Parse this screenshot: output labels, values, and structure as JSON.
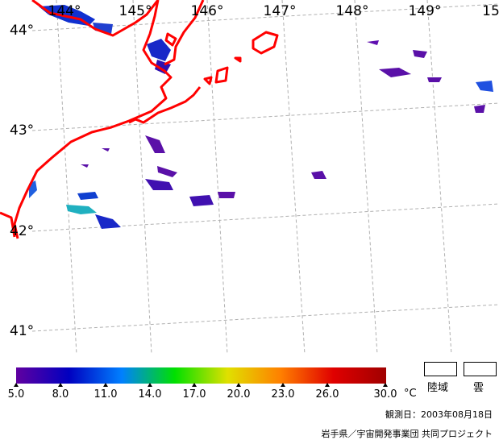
{
  "map": {
    "lon_labels": [
      "144°",
      "145°",
      "146°",
      "147°",
      "148°",
      "149°",
      "15"
    ],
    "lat_labels": [
      "44°",
      "43°",
      "42°",
      "41°"
    ]
  },
  "colorbar": {
    "ticks": [
      "5.0",
      "8.0",
      "11.0",
      "14.0",
      "17.0",
      "20.0",
      "23.0",
      "26.0",
      "30.0"
    ],
    "unit": "°C"
  },
  "legend": {
    "land_label": "陸域",
    "cloud_label": "雲"
  },
  "footer": {
    "observation_date": "観測日：2003年08月18日",
    "credit": "岩手県／宇宙開発事業団 共同プロジェクト"
  },
  "colors": {
    "coastline": "#ff0000",
    "grid": "#b0b0b0",
    "colorbar": [
      "#6000a0",
      "#0000c0",
      "#0080ff",
      "#00e000",
      "#e0e000",
      "#ff8000",
      "#e00000",
      "#a00000"
    ]
  }
}
